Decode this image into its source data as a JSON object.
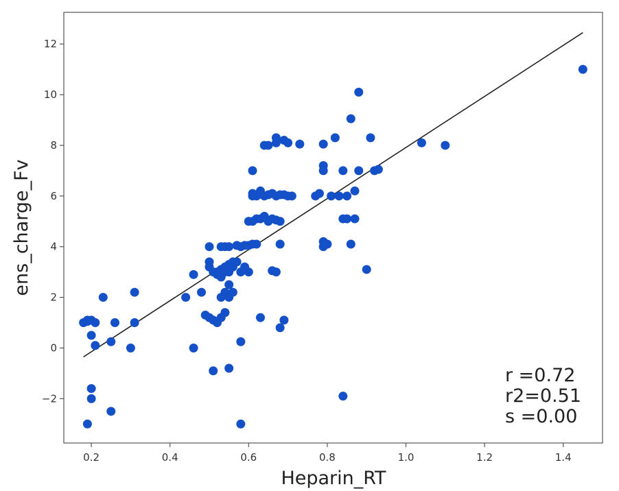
{
  "chart_data": {
    "type": "scatter",
    "title": "",
    "xlabel": "Heparin_RT",
    "ylabel": "ens_charge_Fv",
    "xlim": [
      0.13,
      1.5
    ],
    "ylim": [
      -3.75,
      13.25
    ],
    "x_ticks": [
      "0.2",
      "0.4",
      "0.6",
      "0.8",
      "1.0",
      "1.2",
      "1.4"
    ],
    "y_ticks": [
      "−2",
      "0",
      "2",
      "4",
      "6",
      "8",
      "10",
      "12"
    ],
    "grid": false,
    "fit_line": {
      "x1": 0.18,
      "y1": -0.35,
      "x2": 1.45,
      "y2": 12.45
    },
    "annotations": [
      "r =0.72",
      "r2=0.51",
      "s =0.00"
    ],
    "colors": {
      "points": "#1450c8",
      "fit_line": "#222222",
      "frame": "#555555"
    },
    "series": [
      {
        "x": [
          0.18,
          0.19,
          0.2,
          0.21,
          0.19,
          0.2,
          0.2,
          0.2,
          0.19,
          0.21,
          0.23,
          0.25,
          0.25,
          0.26,
          0.3,
          0.31,
          0.31,
          0.44,
          0.46,
          0.46,
          0.48,
          0.49,
          0.5,
          0.5,
          0.51,
          0.52,
          0.53,
          0.54,
          0.55,
          0.56,
          0.52,
          0.53,
          0.54,
          0.55,
          0.56,
          0.53,
          0.55,
          0.55,
          0.5,
          0.51,
          0.53,
          0.54,
          0.55,
          0.5,
          0.52,
          0.54,
          0.56,
          0.57,
          0.51,
          0.55,
          0.53,
          0.54,
          0.55,
          0.57,
          0.58,
          0.59,
          0.6,
          0.61,
          0.62,
          0.58,
          0.59,
          0.6,
          0.6,
          0.61,
          0.62,
          0.63,
          0.64,
          0.65,
          0.61,
          0.61,
          0.63,
          0.64,
          0.65,
          0.66,
          0.67,
          0.64,
          0.65,
          0.67,
          0.67,
          0.69,
          0.7,
          0.73,
          0.61,
          0.62,
          0.63,
          0.68,
          0.71,
          0.66,
          0.67,
          0.68,
          0.69,
          0.7,
          0.67,
          0.66,
          0.68,
          0.63,
          0.68,
          0.69,
          0.58,
          0.58,
          0.77,
          0.78,
          0.79,
          0.79,
          0.79,
          0.8,
          0.81,
          0.82,
          0.83,
          0.84,
          0.85,
          0.86,
          0.87,
          0.88,
          0.9,
          0.91,
          0.92,
          0.93,
          0.84,
          0.85,
          0.86,
          0.87,
          0.88,
          0.79,
          0.79,
          0.84,
          1.04,
          1.1,
          1.45
        ],
        "y": [
          1.0,
          1.1,
          1.1,
          1.0,
          -3.0,
          -2.0,
          -1.6,
          0.5,
          1.05,
          0.1,
          2.0,
          0.25,
          -2.5,
          1.0,
          0.0,
          2.2,
          1.0,
          2.0,
          2.9,
          0.0,
          2.2,
          1.3,
          1.2,
          4.0,
          1.1,
          1.0,
          2.0,
          2.2,
          2.5,
          2.2,
          3.0,
          3.1,
          3.2,
          3.3,
          3.4,
          2.8,
          3.0,
          2.0,
          3.2,
          3.0,
          1.2,
          1.4,
          3.1,
          3.4,
          2.9,
          3.0,
          3.2,
          3.4,
          -0.9,
          -0.8,
          4.0,
          4.0,
          4.0,
          4.05,
          4.0,
          4.05,
          4.05,
          4.1,
          4.1,
          3.0,
          3.2,
          3.0,
          5.0,
          5.0,
          5.1,
          5.1,
          5.2,
          5.0,
          6.0,
          6.1,
          6.2,
          6.0,
          6.05,
          6.1,
          6.0,
          8.0,
          8.0,
          8.1,
          8.3,
          8.2,
          8.1,
          8.05,
          7.0,
          6.0,
          6.1,
          6.05,
          6.0,
          5.1,
          5.05,
          5.0,
          6.05,
          6.0,
          3.0,
          3.05,
          4.1,
          1.2,
          0.8,
          1.1,
          0.25,
          -3.0,
          6.0,
          6.1,
          7.0,
          7.2,
          8.05,
          4.1,
          6.0,
          8.3,
          6.0,
          7.0,
          5.1,
          9.05,
          5.1,
          10.1,
          3.1,
          8.3,
          7.0,
          7.05,
          5.1,
          6.0,
          4.1,
          6.2,
          7.0,
          4.0,
          4.2,
          -1.9,
          8.1,
          8.0,
          11.0
        ]
      }
    ]
  }
}
